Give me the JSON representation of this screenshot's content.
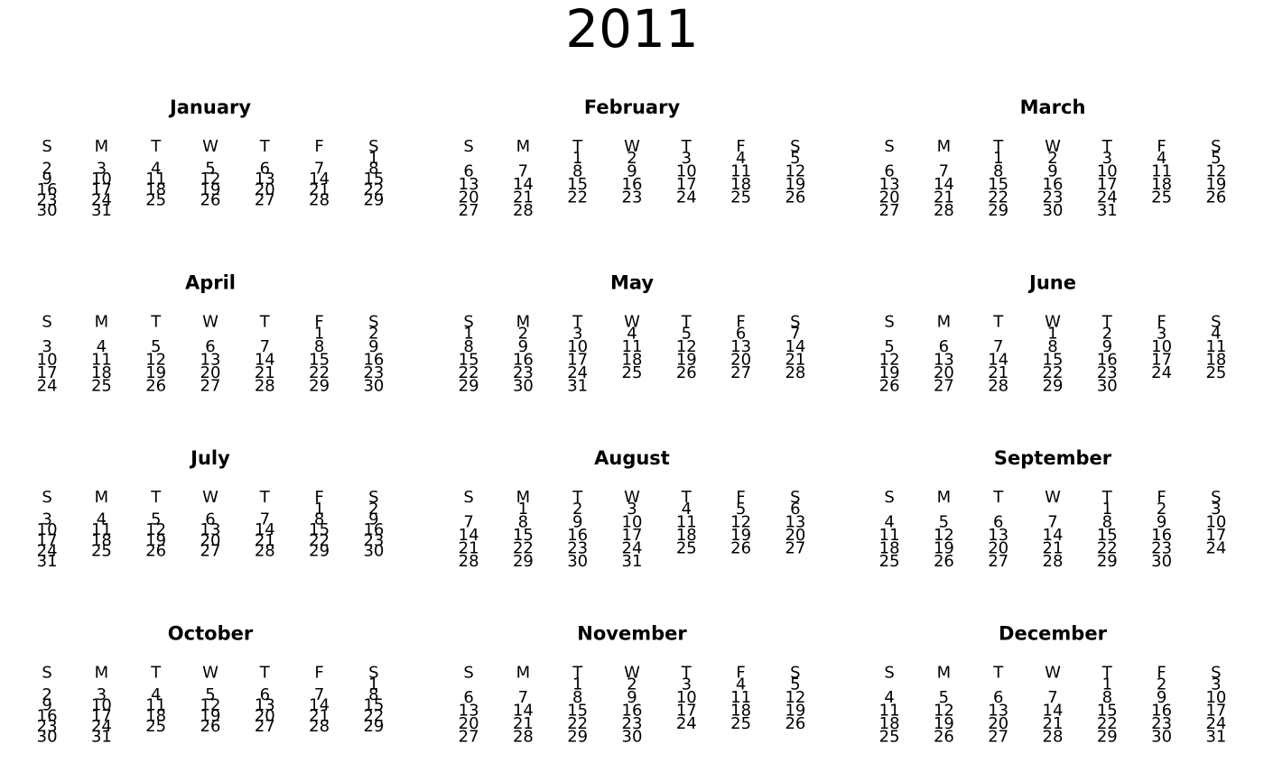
{
  "title": "2011",
  "weekdays": [
    "S",
    "M",
    "T",
    "W",
    "T",
    "F",
    "S"
  ],
  "months": [
    {
      "name": "January",
      "weeks": [
        [
          null,
          null,
          null,
          null,
          null,
          null,
          1
        ],
        [
          2,
          3,
          4,
          5,
          6,
          7,
          8
        ],
        [
          9,
          10,
          11,
          12,
          13,
          14,
          15
        ],
        [
          16,
          17,
          18,
          19,
          20,
          21,
          22
        ],
        [
          23,
          24,
          25,
          26,
          27,
          28,
          29
        ],
        [
          30,
          31
        ]
      ]
    },
    {
      "name": "February",
      "weeks": [
        [
          null,
          null,
          1,
          2,
          3,
          4,
          5
        ],
        [
          6,
          7,
          8,
          9,
          10,
          11,
          12
        ],
        [
          13,
          14,
          15,
          16,
          17,
          18,
          19
        ],
        [
          20,
          21,
          22,
          23,
          24,
          25,
          26
        ],
        [
          27,
          28
        ]
      ]
    },
    {
      "name": "March",
      "weeks": [
        [
          null,
          null,
          1,
          2,
          3,
          4,
          5
        ],
        [
          6,
          7,
          8,
          9,
          10,
          11,
          12
        ],
        [
          13,
          14,
          15,
          16,
          17,
          18,
          19
        ],
        [
          20,
          21,
          22,
          23,
          24,
          25,
          26
        ],
        [
          27,
          28,
          29,
          30,
          31
        ]
      ]
    },
    {
      "name": "April",
      "weeks": [
        [
          null,
          null,
          null,
          null,
          null,
          1,
          2
        ],
        [
          3,
          4,
          5,
          6,
          7,
          8,
          9
        ],
        [
          10,
          11,
          12,
          13,
          14,
          15,
          16
        ],
        [
          17,
          18,
          19,
          20,
          21,
          22,
          23
        ],
        [
          24,
          25,
          26,
          27,
          28,
          29,
          30
        ]
      ]
    },
    {
      "name": "May",
      "weeks": [
        [
          1,
          2,
          3,
          4,
          5,
          6,
          7
        ],
        [
          8,
          9,
          10,
          11,
          12,
          13,
          14
        ],
        [
          15,
          16,
          17,
          18,
          19,
          20,
          21
        ],
        [
          22,
          23,
          24,
          25,
          26,
          27,
          28
        ],
        [
          29,
          30,
          31
        ]
      ]
    },
    {
      "name": "June",
      "weeks": [
        [
          null,
          null,
          null,
          1,
          2,
          3,
          4
        ],
        [
          5,
          6,
          7,
          8,
          9,
          10,
          11
        ],
        [
          12,
          13,
          14,
          15,
          16,
          17,
          18
        ],
        [
          19,
          20,
          21,
          22,
          23,
          24,
          25
        ],
        [
          26,
          27,
          28,
          29,
          30
        ]
      ]
    },
    {
      "name": "July",
      "weeks": [
        [
          null,
          null,
          null,
          null,
          null,
          1,
          2
        ],
        [
          3,
          4,
          5,
          6,
          7,
          8,
          9
        ],
        [
          10,
          11,
          12,
          13,
          14,
          15,
          16
        ],
        [
          17,
          18,
          19,
          20,
          21,
          22,
          23
        ],
        [
          24,
          25,
          26,
          27,
          28,
          29,
          30
        ],
        [
          31
        ]
      ]
    },
    {
      "name": "August",
      "weeks": [
        [
          null,
          1,
          2,
          3,
          4,
          5,
          6
        ],
        [
          7,
          8,
          9,
          10,
          11,
          12,
          13
        ],
        [
          14,
          15,
          16,
          17,
          18,
          19,
          20
        ],
        [
          21,
          22,
          23,
          24,
          25,
          26,
          27
        ],
        [
          28,
          29,
          30,
          31
        ]
      ]
    },
    {
      "name": "September",
      "weeks": [
        [
          null,
          null,
          null,
          null,
          1,
          2,
          3
        ],
        [
          4,
          5,
          6,
          7,
          8,
          9,
          10
        ],
        [
          11,
          12,
          13,
          14,
          15,
          16,
          17
        ],
        [
          18,
          19,
          20,
          21,
          22,
          23,
          24
        ],
        [
          25,
          26,
          27,
          28,
          29,
          30
        ]
      ]
    },
    {
      "name": "October",
      "weeks": [
        [
          null,
          null,
          null,
          null,
          null,
          null,
          1
        ],
        [
          2,
          3,
          4,
          5,
          6,
          7,
          8
        ],
        [
          9,
          10,
          11,
          12,
          13,
          14,
          15
        ],
        [
          16,
          17,
          18,
          19,
          20,
          21,
          22
        ],
        [
          23,
          24,
          25,
          26,
          27,
          28,
          29
        ],
        [
          30,
          31
        ]
      ]
    },
    {
      "name": "November",
      "weeks": [
        [
          null,
          null,
          1,
          2,
          3,
          4,
          5
        ],
        [
          6,
          7,
          8,
          9,
          10,
          11,
          12
        ],
        [
          13,
          14,
          15,
          16,
          17,
          18,
          19
        ],
        [
          20,
          21,
          22,
          23,
          24,
          25,
          26
        ],
        [
          27,
          28,
          29,
          30
        ]
      ]
    },
    {
      "name": "December",
      "weeks": [
        [
          null,
          null,
          null,
          null,
          1,
          2,
          3
        ],
        [
          4,
          5,
          6,
          7,
          8,
          9,
          10
        ],
        [
          11,
          12,
          13,
          14,
          15,
          16,
          17
        ],
        [
          18,
          19,
          20,
          21,
          22,
          23,
          24
        ],
        [
          25,
          26,
          27,
          28,
          29,
          30,
          31
        ]
      ]
    }
  ]
}
